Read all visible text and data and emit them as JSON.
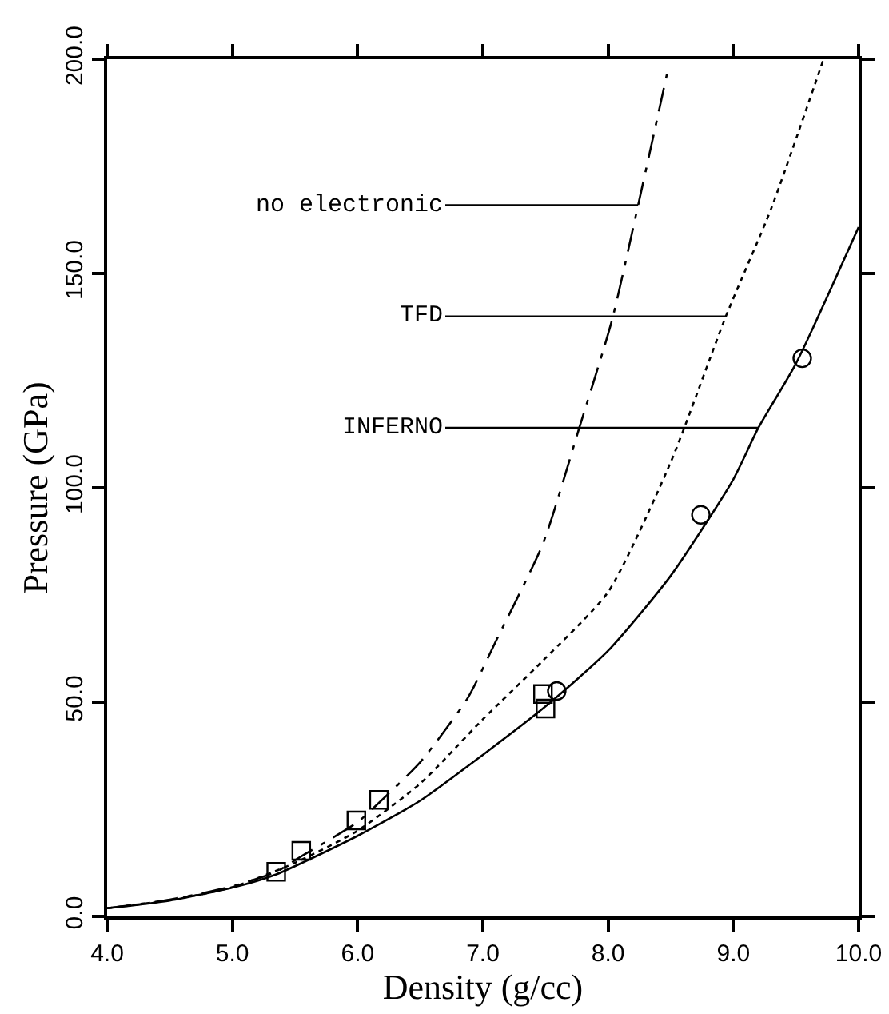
{
  "chart_data": {
    "type": "line",
    "xlabel": "Density (g/cc)",
    "ylabel": "Pressure (GPa)",
    "xlim": [
      4,
      10
    ],
    "xticks": [
      {
        "value": 4,
        "label": "4.0"
      },
      {
        "value": 5,
        "label": "5.0"
      },
      {
        "value": 6,
        "label": "6.0"
      },
      {
        "value": 7,
        "label": "7.0"
      },
      {
        "value": 8,
        "label": "8.0"
      },
      {
        "value": 9,
        "label": "9.0"
      },
      {
        "value": 10,
        "label": "10.0"
      }
    ],
    "ylim": [
      0,
      200
    ],
    "yticks": [
      {
        "value": 0,
        "label": "0.0"
      },
      {
        "value": 50,
        "label": "50.0"
      },
      {
        "value": 100,
        "label": "100.0"
      },
      {
        "value": 150,
        "label": "150.0"
      },
      {
        "value": 200,
        "label": "200.0"
      }
    ],
    "grid": false,
    "series": [
      {
        "line_style": "dashdot",
        "marker": "none",
        "color": "#000000",
        "x": [
          4.0,
          4.5,
          5.0,
          5.35,
          5.55,
          6.0,
          6.17,
          6.5,
          6.88,
          7.1,
          7.48,
          7.77,
          8.03,
          8.24,
          8.47
        ],
        "values": [
          1.9,
          3.9,
          7,
          10.4,
          14,
          22,
          26.5,
          36,
          51,
          64,
          87,
          114,
          139,
          166,
          196.6
        ]
      },
      {
        "line_style": "dotted",
        "marker": "none",
        "color": "#000000",
        "x": [
          4.0,
          4.5,
          5.0,
          5.5,
          6.0,
          6.5,
          7.0,
          7.48,
          8.0,
          8.5,
          8.94,
          9.3,
          9.72
        ],
        "values": [
          1.9,
          3.8,
          6.8,
          12.5,
          20,
          31,
          46,
          59.7,
          75.7,
          106,
          140,
          165,
          200
        ]
      },
      {
        "line_style": "solid",
        "marker": "none",
        "color": "#000000",
        "x": [
          4.0,
          4.5,
          5.0,
          5.35,
          6.0,
          6.5,
          7.0,
          7.5,
          8.0,
          8.5,
          9.0,
          9.2,
          9.5,
          10.0
        ],
        "values": [
          1.9,
          3.7,
          6.7,
          9.8,
          18.8,
          27,
          37.7,
          49,
          62,
          79.5,
          102,
          114,
          129,
          160.8
        ]
      },
      {
        "type": "scatter",
        "marker": "square",
        "color": "#000000",
        "x": [
          5.35,
          5.55,
          5.99,
          6.17,
          7.48,
          7.5
        ],
        "values": [
          10.4,
          15.3,
          22.4,
          27.2,
          51.9,
          48.5
        ]
      },
      {
        "type": "scatter",
        "marker": "circle",
        "color": "#000000",
        "x": [
          7.59,
          8.74,
          9.55
        ],
        "values": [
          52.6,
          93.7,
          130.2
        ]
      }
    ],
    "annotations": [
      {
        "text": "no electronic",
        "x": 8.24,
        "y": 166
      },
      {
        "text": "TFD",
        "x": 8.94,
        "y": 140
      },
      {
        "text": "INFERNO",
        "x": 9.2,
        "y": 114
      }
    ]
  }
}
